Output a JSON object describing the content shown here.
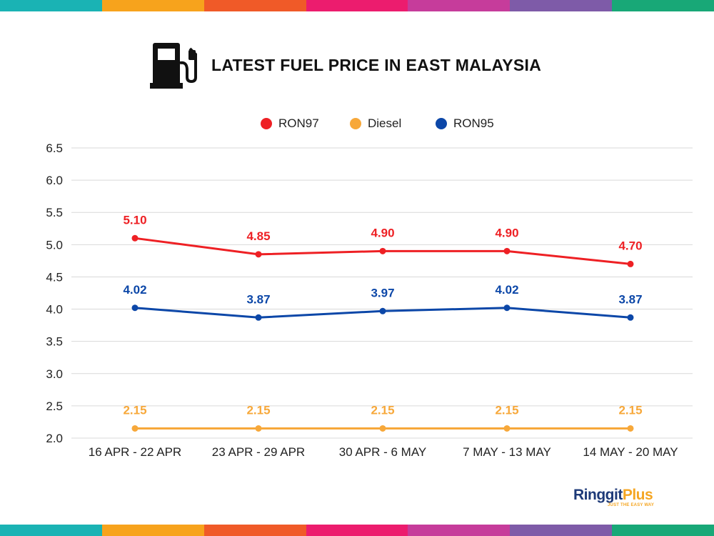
{
  "stripe_colors": [
    "#1ab3b4",
    "#f7a31c",
    "#f05a28",
    "#ec1c6e",
    "#c63c9b",
    "#7e5ba8",
    "#18a877"
  ],
  "header": {
    "icon": "fuel-pump-icon",
    "title": "LATEST FUEL PRICE IN EAST MALAYSIA"
  },
  "logo": {
    "brand_part1": "Ringgit",
    "brand_part2": "Plus",
    "tagline": "JUST THE EASY WAY"
  },
  "chart_data": {
    "type": "line",
    "title": "LATEST FUEL PRICE IN EAST MALAYSIA",
    "xlabel": "",
    "ylabel": "",
    "categories": [
      "16 APR - 22 APR",
      "23 APR - 29 APR",
      "30 APR - 6 MAY",
      "7 MAY - 13 MAY",
      "14 MAY - 20 MAY"
    ],
    "ylim": [
      2.0,
      6.5
    ],
    "yticks": [
      "2.0",
      "2.5",
      "3.0",
      "3.5",
      "4.0",
      "4.5",
      "5.0",
      "5.5",
      "6.0",
      "6.5"
    ],
    "grid": true,
    "legend": "top-center",
    "series": [
      {
        "name": "RON97",
        "color": "#ee2024",
        "values": [
          5.1,
          4.85,
          4.9,
          4.9,
          4.7
        ],
        "labels": [
          "5.10",
          "4.85",
          "4.90",
          "4.90",
          "4.70"
        ]
      },
      {
        "name": "Diesel",
        "color": "#f7a83a",
        "values": [
          2.15,
          2.15,
          2.15,
          2.15,
          2.15
        ],
        "labels": [
          "2.15",
          "2.15",
          "2.15",
          "2.15",
          "2.15"
        ]
      },
      {
        "name": "RON95",
        "color": "#0c47a8",
        "values": [
          4.02,
          3.87,
          3.97,
          4.02,
          3.87
        ],
        "labels": [
          "4.02",
          "3.87",
          "3.97",
          "4.02",
          "3.87"
        ]
      }
    ]
  }
}
